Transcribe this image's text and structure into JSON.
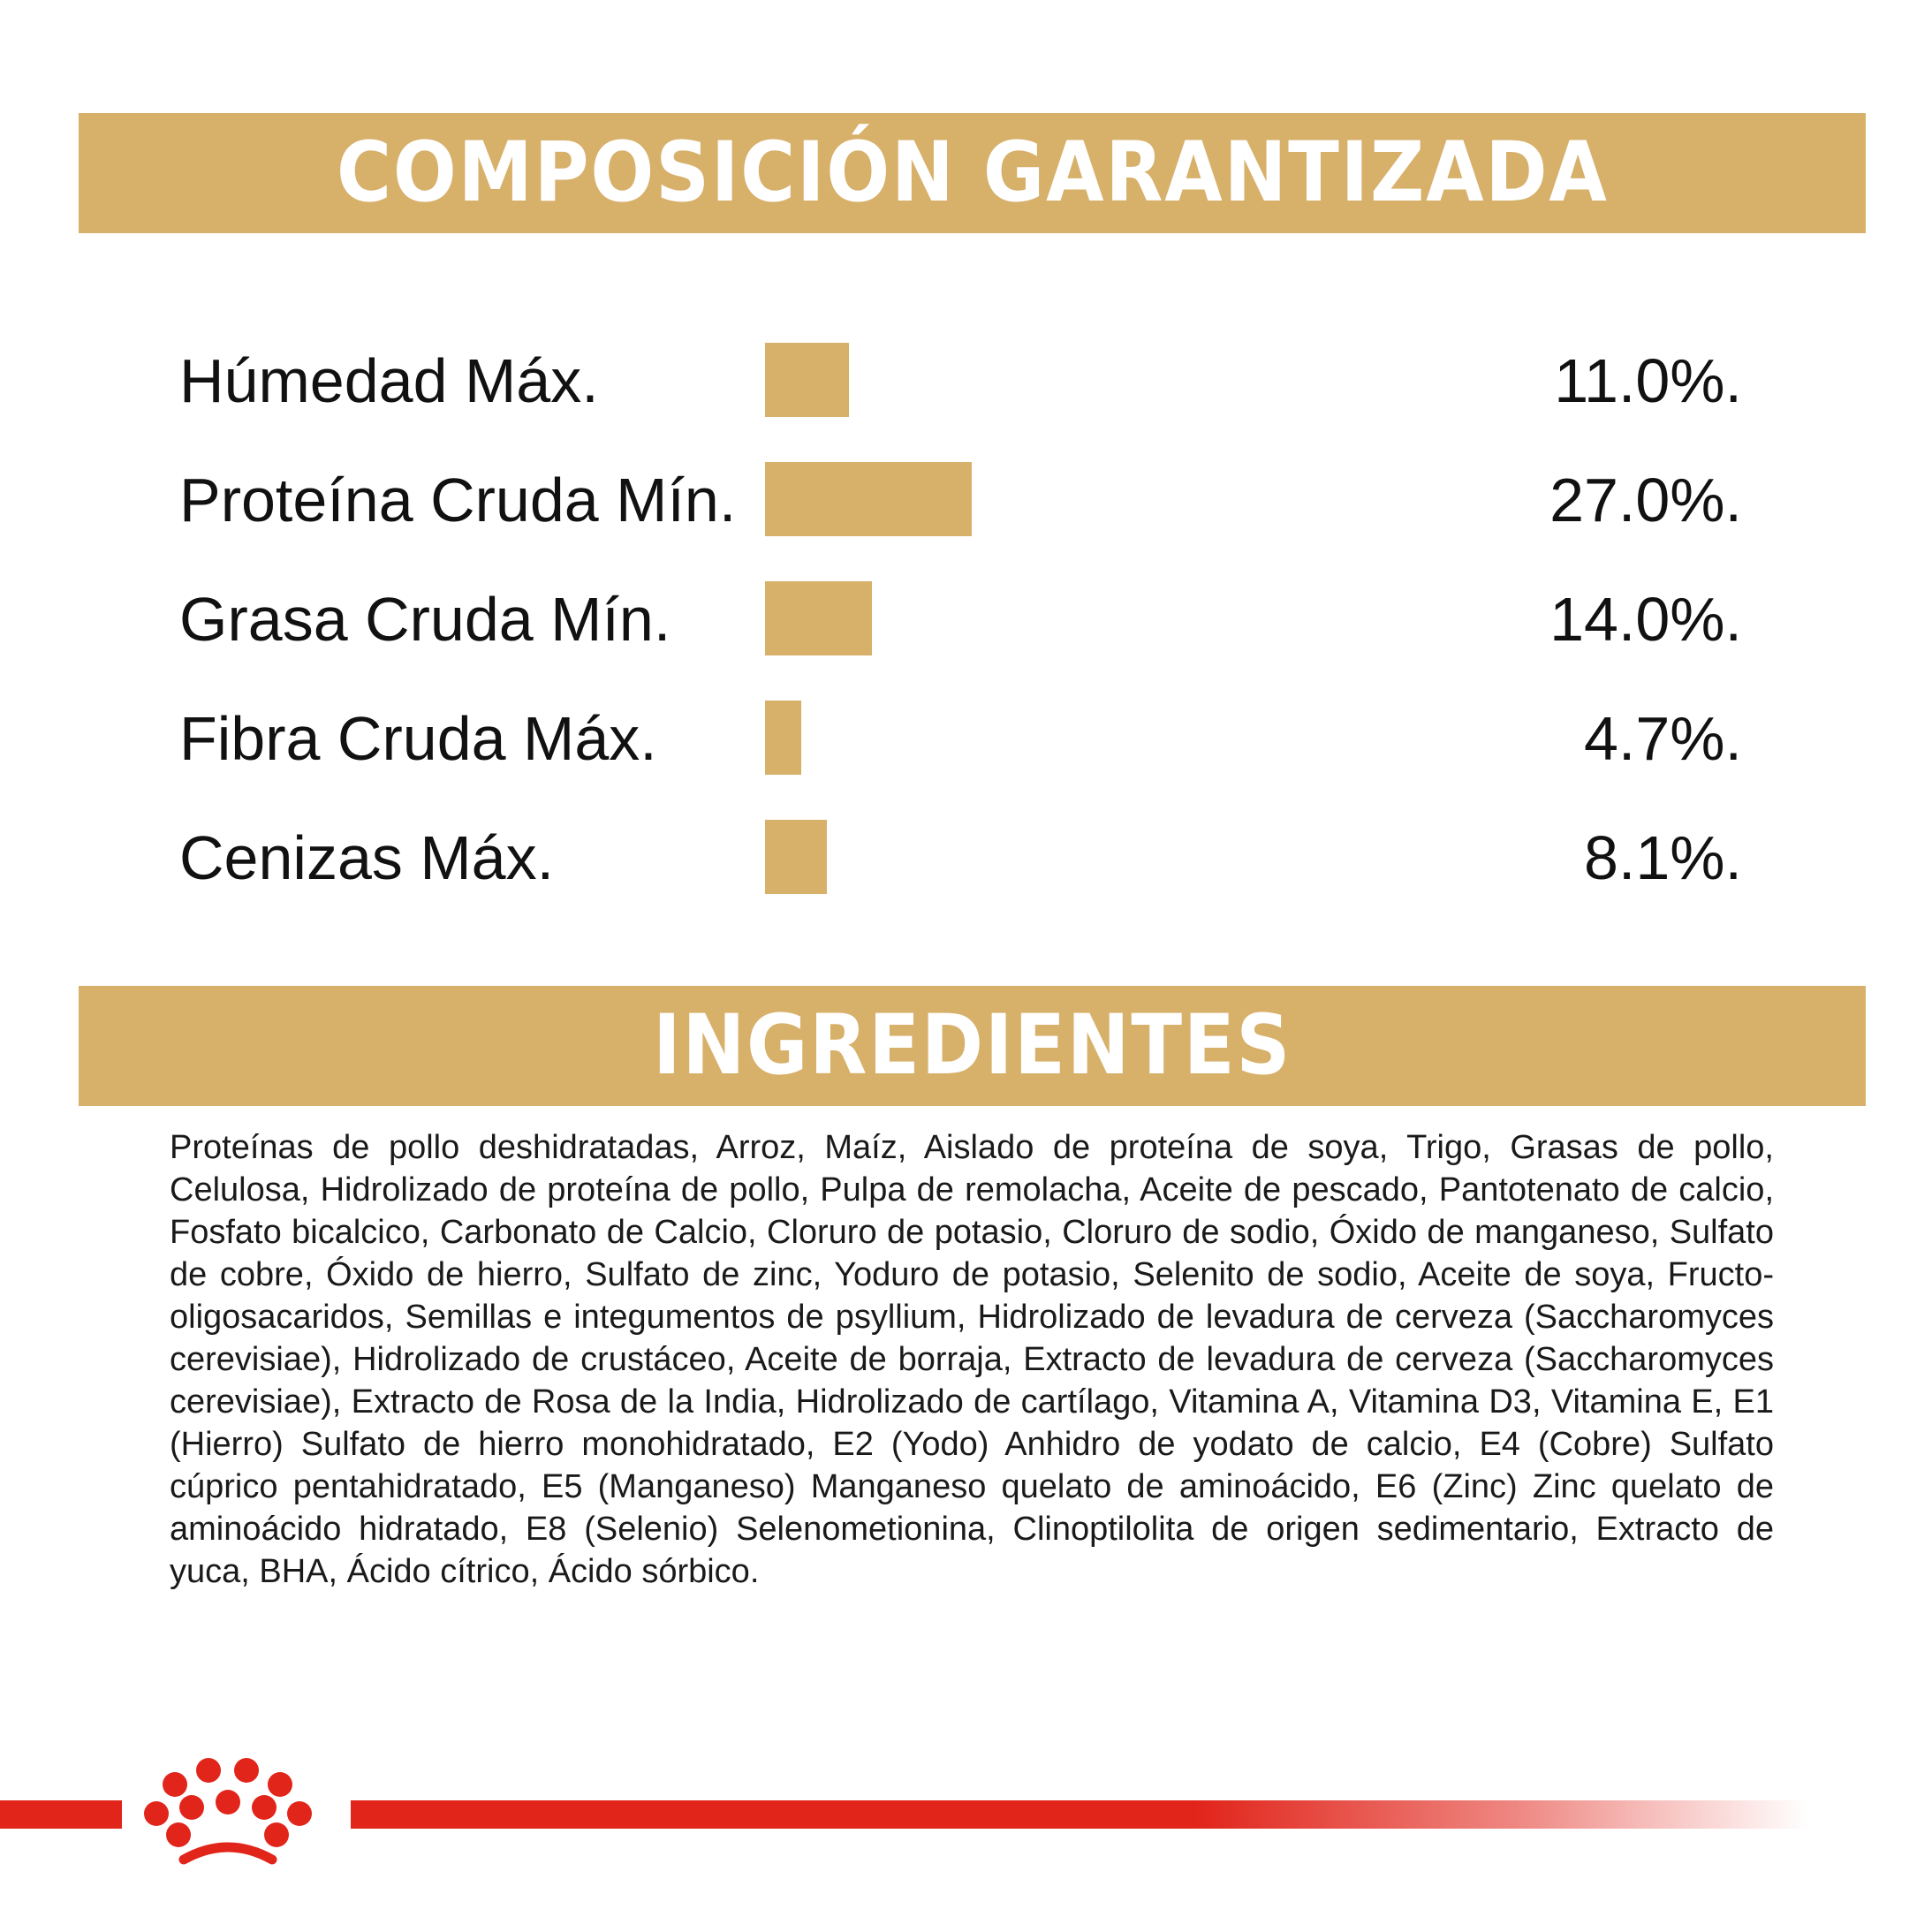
{
  "composition": {
    "title": "COMPOSICIÓN GARANTIZADA",
    "nutrients": [
      {
        "label": "Húmedad Máx.",
        "value": "11.0%.",
        "percent": 11.0
      },
      {
        "label": "Proteína Cruda Mín.",
        "value": "27.0%.",
        "percent": 27.0
      },
      {
        "label": "Grasa Cruda Mín.",
        "value": "14.0%.",
        "percent": 14.0
      },
      {
        "label": "Fibra Cruda Máx.",
        "value": "4.7%.",
        "percent": 4.7
      },
      {
        "label": "Cenizas Máx.",
        "value": "8.1%.",
        "percent": 8.1
      }
    ]
  },
  "ingredients": {
    "title": "INGREDIENTES",
    "text": "Proteínas de pollo deshidratadas, Arroz, Maíz, Aislado de proteína de soya, Trigo, Grasas de pollo, Celulosa, Hidrolizado de proteína de pollo, Pulpa de remolacha, Aceite de pescado, Pantotenato de calcio, Fosfato bicalcico, Carbonato de Calcio, Cloruro de potasio, Cloruro de sodio, Óxido de manganeso, Sulfato de cobre, Óxido de hierro, Sulfato de zinc, Yoduro de potasio, Selenito de sodio, Aceite de soya, Fructo-oligosacaridos, Semillas e integumentos de psyllium, Hidrolizado de levadura de cerveza (Saccharomyces cerevisiae), Hidrolizado de crustáceo, Aceite de borraja, Extracto de levadura de cerveza (Saccharomyces cerevisiae), Extracto de Rosa de la India, Hidrolizado de cartílago, Vitamina A, Vitamina D3, Vitamina E, E1 (Hierro) Sulfato de hierro monohidratado, E2 (Yodo) Anhidro de yodato de calcio, E4 (Cobre) Sulfato cúprico pentahidratado, E5 (Manganeso) Manganeso quelato de aminoácido, E6 (Zinc) Zinc quelato de aminoácido hidratado, E8 (Selenio) Selenometionina, Clinoptilolita de origen sedimentario, Extracto de yuca, BHA, Ácido cítrico, Ácido sórbico."
  },
  "footer": {
    "logo_icon": "royal-canin-crown-icon"
  },
  "colors": {
    "gold": "#d7b06a",
    "brand_red": "#e1251b",
    "text": "#111111"
  }
}
